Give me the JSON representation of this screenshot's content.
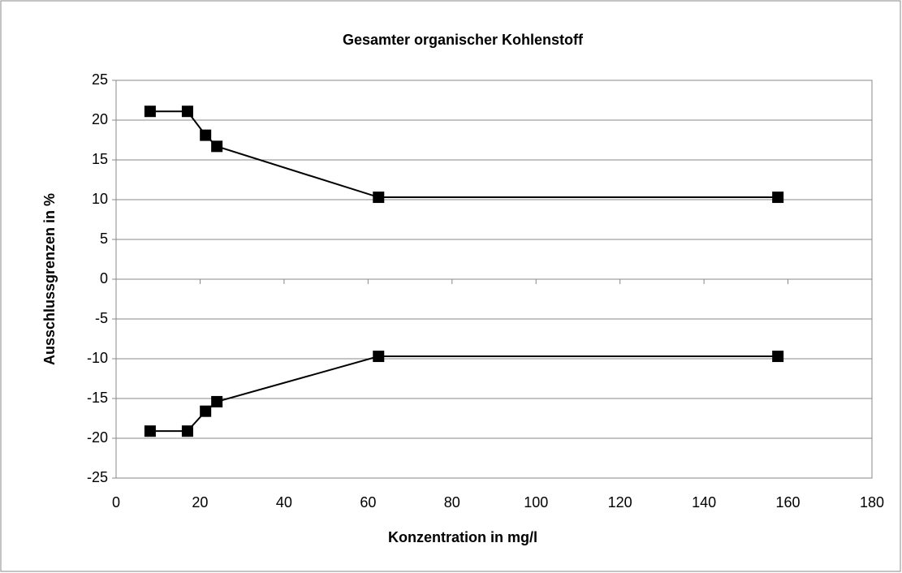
{
  "chart_data": {
    "type": "line",
    "title": "Gesamter organischer Kohlenstoff",
    "xlabel": "Konzentration in mg/l",
    "ylabel": "Ausschlussgrenzen in %",
    "x": [
      8.1,
      17.0,
      21.3,
      24.0,
      62.5,
      157.6
    ],
    "series": [
      {
        "color": "#000000",
        "values": [
          21.1,
          21.1,
          18.1,
          16.7,
          10.3,
          10.3
        ]
      },
      {
        "color": "#000000",
        "values": [
          -19.1,
          -19.1,
          -16.6,
          -15.4,
          -9.7,
          -9.7
        ]
      }
    ],
    "xlim": [
      0,
      180
    ],
    "xticks": [
      0,
      20,
      40,
      60,
      80,
      100,
      120,
      140,
      160,
      180
    ],
    "ylim": [
      -25,
      25
    ],
    "yticks": [
      -25,
      -20,
      -15,
      -10,
      -5,
      0,
      5,
      10,
      15,
      20,
      25
    ],
    "grid": true
  }
}
